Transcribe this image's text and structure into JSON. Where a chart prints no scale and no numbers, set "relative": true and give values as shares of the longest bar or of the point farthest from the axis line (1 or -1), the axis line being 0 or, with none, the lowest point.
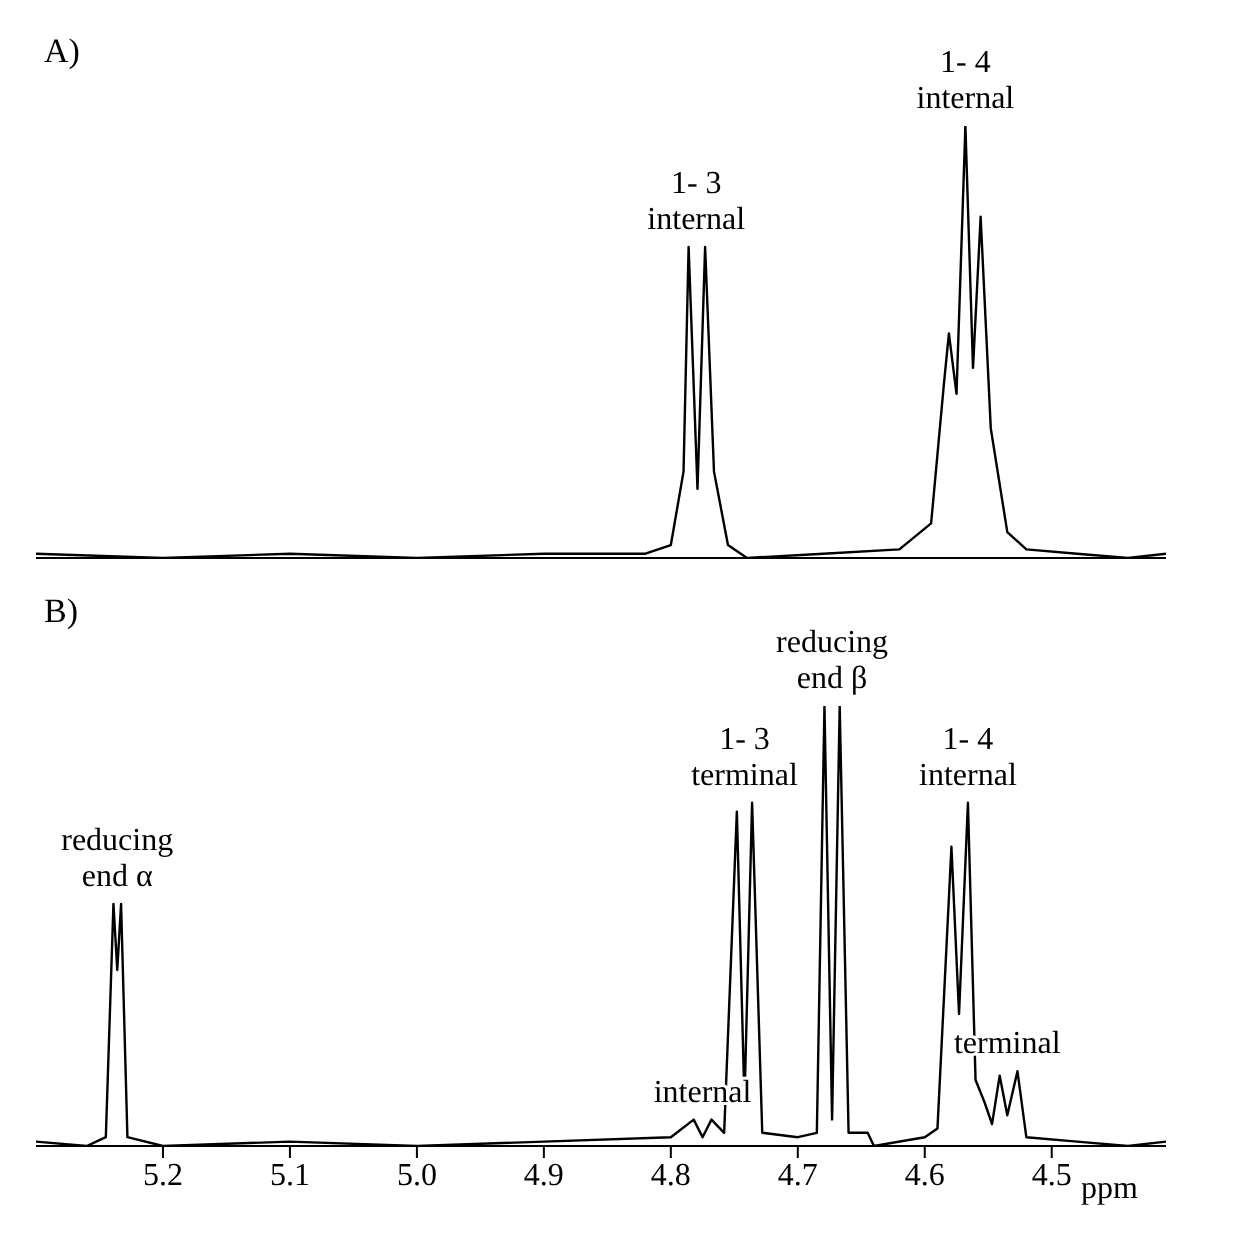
{
  "chart_data": [
    {
      "type": "line",
      "title": "A)",
      "relative": true,
      "xlim": [
        5.3,
        4.41
      ],
      "tick_labels": false,
      "series": [
        {
          "color": "#000000",
          "x": [
            5.3,
            5.2,
            5.1,
            5.0,
            4.9,
            4.82,
            4.8,
            4.79,
            4.786,
            4.779,
            4.773,
            4.766,
            4.755,
            4.74,
            4.68,
            4.62,
            4.595,
            4.585,
            4.581,
            4.575,
            4.568,
            4.562,
            4.556,
            4.548,
            4.535,
            4.52,
            4.48,
            4.44,
            4.41
          ],
          "values": [
            0.01,
            0.0,
            0.01,
            0.0,
            0.01,
            0.01,
            0.03,
            0.2,
            0.72,
            0.16,
            0.72,
            0.2,
            0.03,
            0.0,
            0.01,
            0.02,
            0.08,
            0.4,
            0.52,
            0.38,
            1.0,
            0.44,
            0.79,
            0.3,
            0.06,
            0.02,
            0.01,
            0.0,
            0.01
          ]
        }
      ],
      "annotations": [
        {
          "text": "1- 3\ninternal",
          "x": 4.78,
          "y": 0.72
        },
        {
          "text": "1- 4\ninternal",
          "x": 4.568,
          "y": 1.0
        }
      ]
    },
    {
      "type": "line",
      "title": "B)",
      "relative": true,
      "xlim": [
        5.3,
        4.41
      ],
      "xticks": [
        5.2,
        5.1,
        {
          "value": 5.0,
          "label": "5.0"
        },
        4.9,
        4.8,
        4.7,
        4.6,
        4.5
      ],
      "xlabel": "ppm",
      "series": [
        {
          "color": "#000000",
          "x": [
            5.3,
            5.26,
            5.245,
            5.239,
            5.236,
            5.233,
            5.228,
            5.2,
            5.1,
            5.0,
            4.9,
            4.8,
            4.782,
            4.775,
            4.768,
            4.758,
            4.748,
            4.742,
            4.736,
            4.728,
            4.7,
            4.685,
            4.679,
            4.673,
            4.667,
            4.66,
            4.645,
            4.64,
            4.6,
            4.59,
            4.579,
            4.573,
            4.566,
            4.56,
            4.553,
            4.547,
            4.541,
            4.535,
            4.527,
            4.52,
            4.48,
            4.44,
            4.41
          ],
          "values": [
            0.01,
            0.0,
            0.02,
            0.55,
            0.4,
            0.55,
            0.02,
            0.0,
            0.01,
            0.0,
            0.01,
            0.02,
            0.06,
            0.02,
            0.06,
            0.03,
            0.76,
            0.1,
            0.78,
            0.03,
            0.02,
            0.03,
            1.0,
            0.06,
            1.0,
            0.03,
            0.03,
            0.0,
            0.02,
            0.04,
            0.68,
            0.3,
            0.78,
            0.15,
            0.1,
            0.05,
            0.16,
            0.07,
            0.17,
            0.02,
            0.01,
            0.0,
            0.01
          ]
        }
      ],
      "annotations": [
        {
          "text": "reducing\nend  α",
          "x": 5.236,
          "y": 0.55
        },
        {
          "text": "internal",
          "x": 4.775,
          "y": 0.06
        },
        {
          "text": "1- 3\nterminal",
          "x": 4.742,
          "y": 0.78
        },
        {
          "text": "reducing\nend  β",
          "x": 4.673,
          "y": 1.0
        },
        {
          "text": "1- 4\ninternal",
          "x": 4.566,
          "y": 0.78
        },
        {
          "text": "terminal",
          "x": 4.535,
          "y": 0.17
        }
      ]
    }
  ]
}
